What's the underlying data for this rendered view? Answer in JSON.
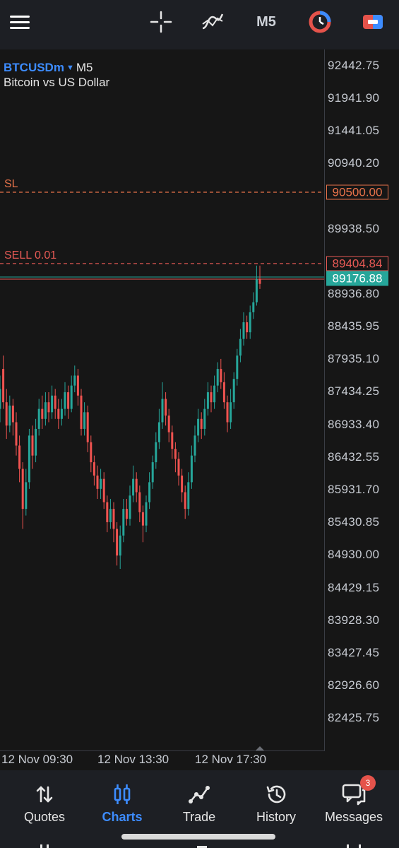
{
  "toolbar": {
    "menu_icon": "hamburger-icon",
    "crosshair_icon": "crosshair-icon",
    "indicators_icon": "indicators-icon",
    "timeframe": "M5",
    "chart_type_icon": "clock-icon",
    "trade_icon": "trade-icon"
  },
  "symbol": {
    "name": "BTCUSDm",
    "timeframe": "M5",
    "description": "Bitcoin vs US Dollar"
  },
  "price_axis": [
    "92442.75",
    "91941.90",
    "91441.05",
    "90940.20",
    "89938.50",
    "88936.80",
    "88435.95",
    "87935.10",
    "87434.25",
    "86933.40",
    "86432.55",
    "85931.70",
    "85430.85",
    "84930.00",
    "84429.15",
    "83928.30",
    "83427.45",
    "82926.60",
    "82425.75"
  ],
  "levels": {
    "sl_label": "SL",
    "sl_price": "90500.00",
    "sell_label": "SELL 0.01",
    "sell_price": "89404.84",
    "bid_price": "89176.88"
  },
  "time_axis": [
    "12 Nov 09:30",
    "12 Nov 13:30",
    "12 Nov 17:30"
  ],
  "colors": {
    "bull": "#26a69a",
    "bear": "#ef5350",
    "sl_line": "#e8734a",
    "sell_line": "#e85a55",
    "accent": "#3d8cff"
  },
  "nav": [
    {
      "label": "Quotes",
      "icon": "quotes-icon",
      "active": false
    },
    {
      "label": "Charts",
      "icon": "charts-icon",
      "active": true
    },
    {
      "label": "Trade",
      "icon": "trade-line-icon",
      "active": false
    },
    {
      "label": "History",
      "icon": "history-icon",
      "active": false
    },
    {
      "label": "Messages",
      "icon": "messages-icon",
      "active": false,
      "badge": "3"
    }
  ],
  "chart_data": {
    "type": "candlestick",
    "ylim": [
      82175,
      92693
    ],
    "candles": [
      {
        "o": 87300,
        "c": 87600,
        "h": 87800,
        "l": 87100
      },
      {
        "o": 87900,
        "c": 87400,
        "h": 88100,
        "l": 87300
      },
      {
        "o": 87400,
        "c": 87050,
        "h": 87600,
        "l": 86850
      },
      {
        "o": 87050,
        "c": 87350,
        "h": 87500,
        "l": 86950
      },
      {
        "o": 87350,
        "c": 87100,
        "h": 87450,
        "l": 86900
      },
      {
        "o": 87100,
        "c": 86750,
        "h": 87250,
        "l": 86600
      },
      {
        "o": 86750,
        "c": 86400,
        "h": 86900,
        "l": 86200
      },
      {
        "o": 86400,
        "c": 85800,
        "h": 86500,
        "l": 85500
      },
      {
        "o": 85800,
        "c": 86200,
        "h": 86400,
        "l": 85700
      },
      {
        "o": 86200,
        "c": 86900,
        "h": 87000,
        "l": 86100
      },
      {
        "o": 86900,
        "c": 86600,
        "h": 87050,
        "l": 86400
      },
      {
        "o": 86600,
        "c": 87000,
        "h": 87150,
        "l": 86500
      },
      {
        "o": 87000,
        "c": 87300,
        "h": 87450,
        "l": 86900
      },
      {
        "o": 87300,
        "c": 87150,
        "h": 87500,
        "l": 87000
      },
      {
        "o": 87150,
        "c": 87400,
        "h": 87550,
        "l": 87050
      },
      {
        "o": 87400,
        "c": 87250,
        "h": 87550,
        "l": 87100
      },
      {
        "o": 87250,
        "c": 87500,
        "h": 87650,
        "l": 87150
      },
      {
        "o": 87500,
        "c": 87300,
        "h": 87600,
        "l": 87150
      },
      {
        "o": 87300,
        "c": 87150,
        "h": 87450,
        "l": 87000
      },
      {
        "o": 87150,
        "c": 87300,
        "h": 87450,
        "l": 87050
      },
      {
        "o": 87300,
        "c": 87550,
        "h": 87700,
        "l": 87200
      },
      {
        "o": 87550,
        "c": 87300,
        "h": 87650,
        "l": 87150
      },
      {
        "o": 87300,
        "c": 87650,
        "h": 87800,
        "l": 87250
      },
      {
        "o": 87650,
        "c": 87800,
        "h": 87950,
        "l": 87550
      },
      {
        "o": 87800,
        "c": 87500,
        "h": 87900,
        "l": 87350
      },
      {
        "o": 87500,
        "c": 87000,
        "h": 87600,
        "l": 86900
      },
      {
        "o": 87000,
        "c": 87250,
        "h": 87400,
        "l": 86900
      },
      {
        "o": 87250,
        "c": 86800,
        "h": 87350,
        "l": 86650
      },
      {
        "o": 86800,
        "c": 86500,
        "h": 86900,
        "l": 86350
      },
      {
        "o": 86500,
        "c": 86300,
        "h": 86600,
        "l": 86150
      },
      {
        "o": 86300,
        "c": 86100,
        "h": 86450,
        "l": 85950
      },
      {
        "o": 86100,
        "c": 86250,
        "h": 86400,
        "l": 85950
      },
      {
        "o": 86250,
        "c": 85900,
        "h": 86350,
        "l": 85800
      },
      {
        "o": 85900,
        "c": 85600,
        "h": 86000,
        "l": 85450
      },
      {
        "o": 85600,
        "c": 85800,
        "h": 85950,
        "l": 85500
      },
      {
        "o": 85800,
        "c": 85500,
        "h": 85900,
        "l": 85300
      },
      {
        "o": 85500,
        "c": 85100,
        "h": 85600,
        "l": 84950
      },
      {
        "o": 85100,
        "c": 85400,
        "h": 85550,
        "l": 84900
      },
      {
        "o": 85400,
        "c": 85800,
        "h": 85950,
        "l": 85300
      },
      {
        "o": 85800,
        "c": 85650,
        "h": 85950,
        "l": 85550
      },
      {
        "o": 85650,
        "c": 86000,
        "h": 86150,
        "l": 85550
      },
      {
        "o": 86000,
        "c": 86250,
        "h": 86450,
        "l": 85900
      },
      {
        "o": 86250,
        "c": 86050,
        "h": 86350,
        "l": 85900
      },
      {
        "o": 86050,
        "c": 85750,
        "h": 86150,
        "l": 85600
      },
      {
        "o": 85750,
        "c": 85550,
        "h": 85850,
        "l": 85300
      },
      {
        "o": 85550,
        "c": 85900,
        "h": 86000,
        "l": 85450
      },
      {
        "o": 85900,
        "c": 86200,
        "h": 86350,
        "l": 85800
      },
      {
        "o": 86200,
        "c": 86500,
        "h": 86600,
        "l": 86100
      },
      {
        "o": 86500,
        "c": 86800,
        "h": 86950,
        "l": 86400
      },
      {
        "o": 86800,
        "c": 87100,
        "h": 87300,
        "l": 86700
      },
      {
        "o": 87100,
        "c": 87450,
        "h": 87700,
        "l": 87000
      },
      {
        "o": 87450,
        "c": 87200,
        "h": 87550,
        "l": 87050
      },
      {
        "o": 87200,
        "c": 86950,
        "h": 87300,
        "l": 86800
      },
      {
        "o": 86950,
        "c": 86700,
        "h": 87050,
        "l": 86550
      },
      {
        "o": 86700,
        "c": 86550,
        "h": 86800,
        "l": 86350
      },
      {
        "o": 86550,
        "c": 86300,
        "h": 86650,
        "l": 86150
      },
      {
        "o": 86300,
        "c": 86050,
        "h": 86400,
        "l": 85900
      },
      {
        "o": 86050,
        "c": 85800,
        "h": 86150,
        "l": 85650
      },
      {
        "o": 85800,
        "c": 86200,
        "h": 86350,
        "l": 85700
      },
      {
        "o": 86200,
        "c": 86600,
        "h": 86750,
        "l": 86100
      },
      {
        "o": 86600,
        "c": 86900,
        "h": 87050,
        "l": 86500
      },
      {
        "o": 86900,
        "c": 87150,
        "h": 87300,
        "l": 86800
      },
      {
        "o": 87150,
        "c": 87000,
        "h": 87250,
        "l": 86850
      },
      {
        "o": 87000,
        "c": 87300,
        "h": 87450,
        "l": 86900
      },
      {
        "o": 87300,
        "c": 87550,
        "h": 87700,
        "l": 87200
      },
      {
        "o": 87550,
        "c": 87400,
        "h": 87650,
        "l": 87250
      },
      {
        "o": 87400,
        "c": 87650,
        "h": 87800,
        "l": 87300
      },
      {
        "o": 87650,
        "c": 87900,
        "h": 88000,
        "l": 87550
      },
      {
        "o": 87900,
        "c": 87700,
        "h": 88050,
        "l": 87600
      },
      {
        "o": 87700,
        "c": 87400,
        "h": 87850,
        "l": 87300
      },
      {
        "o": 87400,
        "c": 87100,
        "h": 87500,
        "l": 86950
      },
      {
        "o": 87100,
        "c": 87400,
        "h": 87600,
        "l": 87000
      },
      {
        "o": 87400,
        "c": 87750,
        "h": 87850,
        "l": 87300
      },
      {
        "o": 87750,
        "c": 88100,
        "h": 88200,
        "l": 87650
      },
      {
        "o": 88100,
        "c": 88350,
        "h": 88500,
        "l": 88000
      },
      {
        "o": 88350,
        "c": 88600,
        "h": 88750,
        "l": 88250
      },
      {
        "o": 88600,
        "c": 88450,
        "h": 88700,
        "l": 88350
      },
      {
        "o": 88450,
        "c": 88750,
        "h": 88850,
        "l": 88350
      },
      {
        "o": 88750,
        "c": 88900,
        "h": 89050,
        "l": 88650
      },
      {
        "o": 88900,
        "c": 89250,
        "h": 89450,
        "l": 88850
      },
      {
        "o": 89250,
        "c": 89176,
        "h": 89450,
        "l": 89100
      }
    ]
  }
}
